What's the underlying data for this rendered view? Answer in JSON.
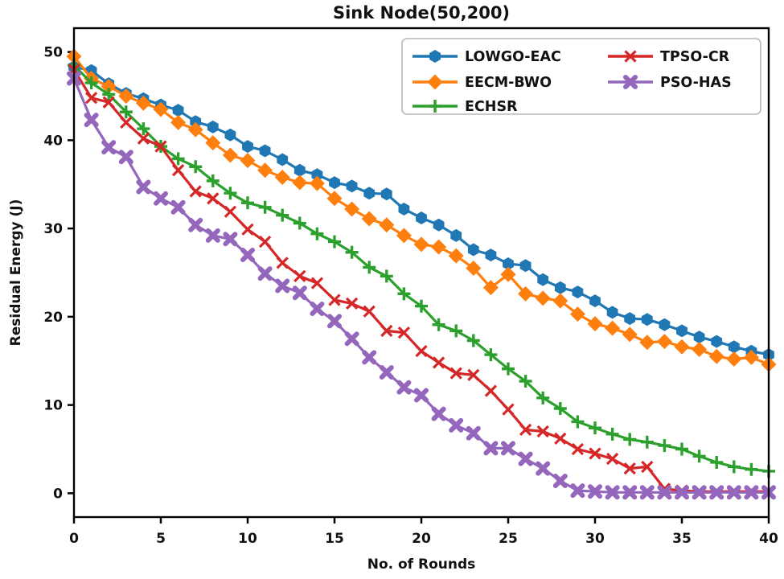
{
  "title": "Sink Node(50,200)",
  "axes": {
    "xlabel": "No. of Rounds",
    "ylabel": "Residual  Energy (J)",
    "x_ticks": [
      0,
      5,
      10,
      15,
      20,
      25,
      30,
      35,
      40
    ],
    "y_ticks": [
      0,
      10,
      20,
      30,
      40,
      50
    ],
    "xlim": [
      0,
      40
    ],
    "ylim": [
      -2.7,
      52.7
    ],
    "grid": "off",
    "frame_color": "#000000"
  },
  "legend": {
    "position": "upper right",
    "ncols": 2,
    "border_color": "#b8b8b8",
    "columns": [
      [
        "LOWGO-EAC",
        "EECM-BWO",
        "ECHSR"
      ],
      [
        "TPSO-CR",
        "PSO-HAS"
      ]
    ]
  },
  "chart_data": {
    "type": "line",
    "title": "Sink Node(50,200)",
    "xlabel": "No. of Rounds",
    "ylabel": "Residual  Energy (J)",
    "xlim": [
      0,
      40
    ],
    "ylim": [
      0,
      50
    ],
    "x": [
      0,
      1,
      2,
      3,
      4,
      5,
      6,
      7,
      8,
      9,
      10,
      11,
      12,
      13,
      14,
      15,
      16,
      17,
      18,
      19,
      20,
      21,
      22,
      23,
      24,
      25,
      26,
      27,
      28,
      29,
      30,
      31,
      32,
      33,
      34,
      35,
      36,
      37,
      38,
      39,
      40
    ],
    "series": [
      {
        "name": "LOWGO-EAC",
        "color": "#1f77b4",
        "marker": "hexagon",
        "values": [
          48.3,
          47.9,
          46.4,
          45.3,
          44.7,
          44.0,
          43.4,
          42.1,
          41.5,
          40.6,
          39.3,
          38.8,
          37.8,
          36.6,
          36.1,
          35.2,
          34.8,
          34.0,
          33.9,
          32.2,
          31.2,
          30.4,
          29.2,
          27.6,
          27.0,
          26.0,
          25.8,
          24.2,
          23.3,
          22.8,
          21.8,
          20.5,
          19.8,
          19.7,
          19.1,
          18.4,
          17.7,
          17.2,
          16.6,
          16.1,
          15.7
        ]
      },
      {
        "name": "EECM-BWO",
        "color": "#ff7f0e",
        "marker": "diamond",
        "values": [
          49.5,
          47.0,
          46.1,
          45.0,
          44.2,
          43.5,
          42.0,
          41.2,
          39.7,
          38.3,
          37.7,
          36.6,
          35.8,
          35.2,
          35.1,
          33.4,
          32.2,
          31.1,
          30.4,
          29.2,
          28.2,
          27.9,
          26.9,
          25.5,
          23.3,
          24.8,
          22.6,
          22.1,
          21.8,
          20.3,
          19.2,
          18.7,
          18.0,
          17.1,
          17.2,
          16.6,
          16.3,
          15.5,
          15.2,
          15.4,
          14.6
        ]
      },
      {
        "name": "ECHSR",
        "color": "#2ca02c",
        "marker": "plus",
        "values": [
          48.5,
          46.5,
          45.2,
          43.2,
          41.3,
          39.3,
          37.9,
          37.0,
          35.4,
          34.0,
          32.9,
          32.4,
          31.5,
          30.6,
          29.4,
          28.5,
          27.3,
          25.6,
          24.6,
          22.6,
          21.2,
          19.1,
          18.4,
          17.3,
          15.7,
          14.1,
          12.7,
          10.8,
          9.6,
          8.1,
          7.4,
          6.7,
          6.1,
          5.8,
          5.4,
          5.0,
          4.2,
          3.5,
          3.0,
          2.7,
          2.5
        ]
      },
      {
        "name": "TPSO-CR",
        "color": "#d62728",
        "marker": "x",
        "values": [
          48.0,
          44.8,
          44.3,
          42.0,
          40.2,
          39.3,
          36.6,
          34.2,
          33.4,
          31.9,
          29.9,
          28.5,
          26.1,
          24.6,
          23.8,
          21.9,
          21.5,
          20.6,
          18.4,
          18.2,
          16.1,
          14.8,
          13.6,
          13.4,
          11.6,
          9.5,
          7.2,
          7.0,
          6.2,
          5.0,
          4.5,
          3.9,
          2.8,
          3.0,
          0.5,
          0.3,
          0.2,
          0.2,
          0.2,
          0.2,
          0.2
        ]
      },
      {
        "name": "PSO-HAS",
        "color": "#9467bd",
        "marker": "thickx",
        "values": [
          47.0,
          42.3,
          39.2,
          38.1,
          34.7,
          33.4,
          32.4,
          30.4,
          29.2,
          28.8,
          27.0,
          24.9,
          23.5,
          22.7,
          20.9,
          19.5,
          17.5,
          15.4,
          13.7,
          12.0,
          11.1,
          9.0,
          7.7,
          6.8,
          5.1,
          5.1,
          3.9,
          2.8,
          1.4,
          0.3,
          0.2,
          0.1,
          0.1,
          0.1,
          0.1,
          0.1,
          0.1,
          0.1,
          0.1,
          0.1,
          0.1
        ]
      }
    ]
  }
}
